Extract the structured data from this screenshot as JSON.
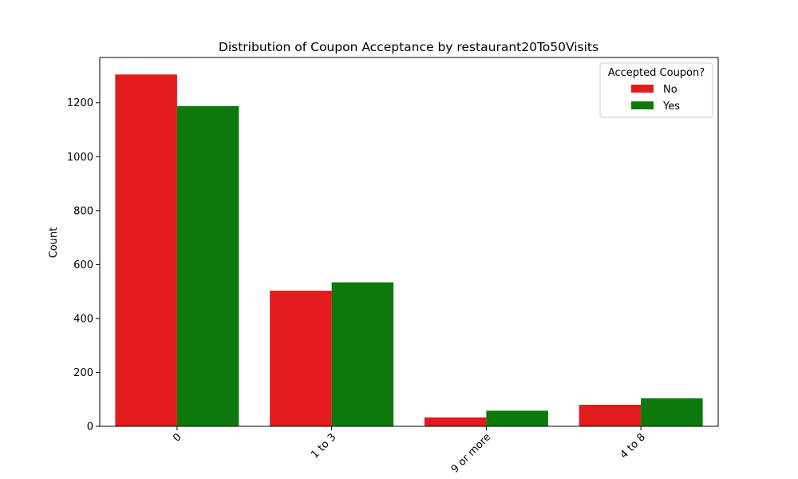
{
  "chart_data": {
    "type": "bar",
    "title": "Distribution of Coupon Acceptance by restaurant20To50Visits",
    "xlabel": "",
    "ylabel": "Count",
    "categories": [
      "0",
      "1 to 3",
      "9 or more",
      "4 to 8"
    ],
    "series": [
      {
        "name": "No",
        "color": "#e41a1c",
        "values": [
          1305,
          503,
          33,
          80
        ]
      },
      {
        "name": "Yes",
        "color": "#0e7a0d",
        "values": [
          1188,
          534,
          58,
          104
        ]
      }
    ],
    "ylim": [
      0,
      1368
    ],
    "yticks": [
      0,
      200,
      400,
      600,
      800,
      1000,
      1200
    ],
    "grid": false,
    "legend": {
      "title": "Accepted Coupon?",
      "placement": "top-right"
    },
    "xtick_rotation": 45
  }
}
